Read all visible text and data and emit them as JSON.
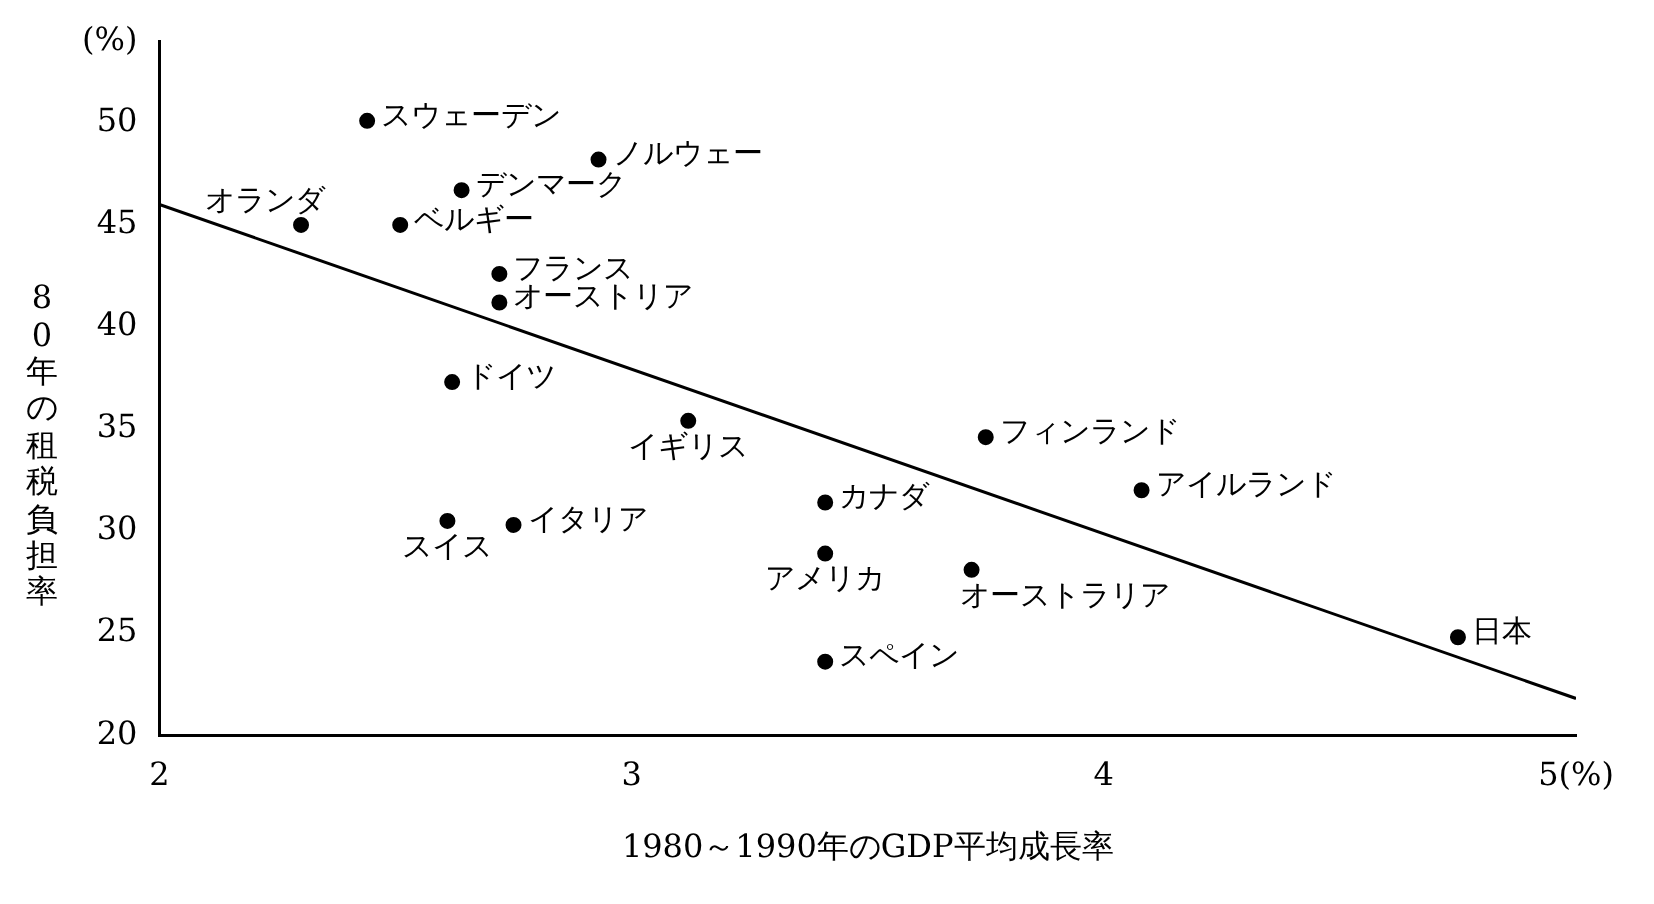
{
  "chart_data": {
    "type": "scatter",
    "xlabel": "1980～1990年のGDP平均成長率",
    "ylabel": "80年の租税負担率",
    "xlim": [
      2,
      5
    ],
    "xticks": [
      2,
      3,
      4,
      {
        "value": 5,
        "label": "5(%)"
      }
    ],
    "ylim": [
      20,
      54
    ],
    "yticks": [
      20,
      25,
      30,
      35,
      40,
      45,
      50,
      {
        "value": 54,
        "label": "(%)"
      }
    ],
    "grid": false,
    "legend": false,
    "marker": "circle",
    "series": [
      {
        "type": "scatter",
        "color": "#000000",
        "x": [
          2.44,
          2.93,
          2.64,
          2.3,
          2.51,
          2.72,
          2.72,
          2.62,
          3.12,
          3.75,
          4.08,
          3.41,
          2.75,
          2.61,
          3.41,
          3.72,
          3.41,
          4.75
        ],
        "values": [
          50.1,
          48.2,
          46.7,
          45.0,
          45.0,
          42.6,
          41.2,
          37.3,
          35.4,
          34.6,
          32.0,
          31.4,
          30.3,
          30.5,
          28.9,
          28.1,
          23.6,
          24.8
        ]
      },
      {
        "type": "line",
        "color": "#000000",
        "x": [
          2,
          5
        ],
        "values": [
          46.0,
          21.8
        ],
        "marker": "none"
      }
    ],
    "annotations": [
      {
        "text": "スウェーデン",
        "x": 2.44,
        "y": 50.1
      },
      {
        "text": "ノルウェー",
        "x": 2.93,
        "y": 48.2
      },
      {
        "text": "デンマーク",
        "x": 2.64,
        "y": 46.7
      },
      {
        "text": "オランダ",
        "x": 2.3,
        "y": 45.0
      },
      {
        "text": "ベルギー",
        "x": 2.51,
        "y": 45.0
      },
      {
        "text": "フランス",
        "x": 2.72,
        "y": 42.6
      },
      {
        "text": "オーストリア",
        "x": 2.72,
        "y": 41.2
      },
      {
        "text": "ドイツ",
        "x": 2.62,
        "y": 37.3
      },
      {
        "text": "イギリス",
        "x": 3.12,
        "y": 35.4
      },
      {
        "text": "フィンランド",
        "x": 3.75,
        "y": 34.6
      },
      {
        "text": "アイルランド",
        "x": 4.08,
        "y": 32.0
      },
      {
        "text": "カナダ",
        "x": 3.41,
        "y": 31.4
      },
      {
        "text": "イタリア",
        "x": 2.75,
        "y": 30.3
      },
      {
        "text": "スイス",
        "x": 2.61,
        "y": 30.5
      },
      {
        "text": "アメリカ",
        "x": 3.41,
        "y": 28.9
      },
      {
        "text": "オーストラリア",
        "x": 3.72,
        "y": 28.1
      },
      {
        "text": "スペイン",
        "x": 3.41,
        "y": 23.6
      },
      {
        "text": "日本",
        "x": 4.75,
        "y": 24.8
      }
    ]
  }
}
